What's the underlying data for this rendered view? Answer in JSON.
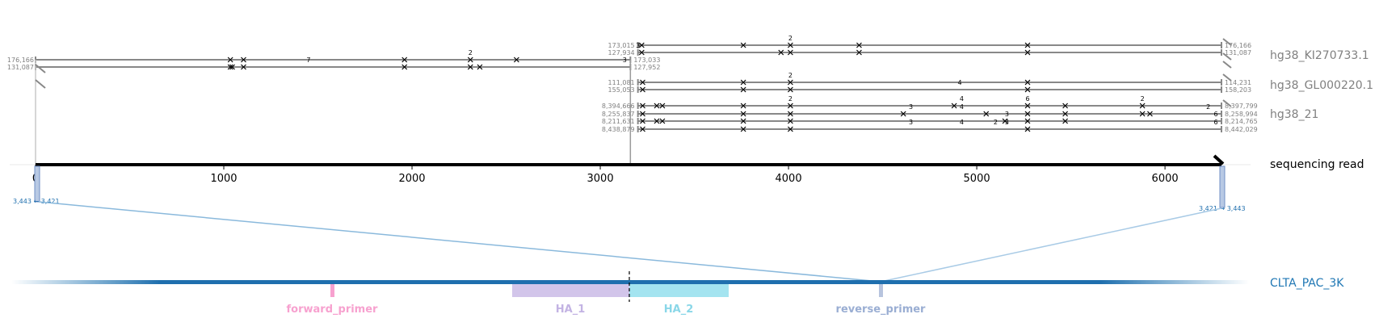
{
  "read": {
    "label": "sequencing read",
    "length": 6300,
    "ticks": [
      0,
      1000,
      2000,
      3000,
      4000,
      5000,
      6000
    ]
  },
  "colors": {
    "alignment": "#888888",
    "read": "#000000",
    "target": "#1f77b4",
    "forward_primer": "#f7a1cf",
    "HA_1": "#d2c5ea",
    "HA_2": "#a4e4f0",
    "reverse_primer": "#9aaed3",
    "connector": "#8ab9dc",
    "contig_label": "#808080"
  },
  "contigs": [
    {
      "name": "hg38_KI270733.1",
      "alignments": [
        {
          "read_start": 0,
          "read_end": 3160,
          "ref_start": "176,166",
          "ref_end": "173,033",
          "mismatches": [
            1035,
            1105,
            1960,
            2310,
            2555
          ],
          "mismatch_counts": [
            {
              "x": 2310,
              "n": "2"
            }
          ]
        },
        {
          "read_start": 0,
          "read_end": 3160,
          "ref_start": "131,087",
          "ref_end": "127,952",
          "mismatches": [
            1035,
            1045,
            1105,
            1960,
            2310,
            2360
          ],
          "mismatch_counts": [
            {
              "x": 1450,
              "n": "7"
            },
            {
              "x": 3130,
              "n": "3"
            }
          ]
        },
        {
          "read_start": 3200,
          "read_end": 6300,
          "ref_start": "173,015",
          "ref_end": "176,166",
          "mismatches": [
            3220,
            3760,
            4010,
            4375,
            5270
          ],
          "mismatch_counts": [
            {
              "x": 4010,
              "n": "2"
            }
          ]
        },
        {
          "read_start": 3200,
          "read_end": 6300,
          "ref_start": "127,934",
          "ref_end": "131,087",
          "mismatches": [
            3220,
            3960,
            4010,
            4375,
            5270
          ],
          "mismatch_counts": [
            {
              "x": 3200,
              "n": "3"
            }
          ]
        }
      ]
    },
    {
      "name": "hg38_GL000220.1",
      "alignments": [
        {
          "read_start": 3200,
          "read_end": 6300,
          "ref_start": "111,081",
          "ref_end": "114,231",
          "mismatches": [
            3225,
            3760,
            4010,
            5270
          ],
          "mismatch_counts": [
            {
              "x": 4010,
              "n": "2"
            }
          ]
        },
        {
          "read_start": 3200,
          "read_end": 6300,
          "ref_start": "155,053",
          "ref_end": "158,203",
          "mismatches": [
            3225,
            3760,
            4010,
            5270
          ],
          "mismatch_counts": [
            {
              "x": 4910,
              "n": "4"
            }
          ]
        }
      ]
    },
    {
      "name": "hg38_21",
      "alignments": [
        {
          "read_start": 3200,
          "read_end": 6300,
          "ref_start": "8,394,666",
          "ref_end": "8,397,799",
          "mismatches": [
            3225,
            3300,
            3330,
            3760,
            4010,
            4880,
            5270,
            5470,
            5880
          ],
          "mismatch_counts": [
            {
              "x": 4010,
              "n": "2"
            },
            {
              "x": 5880,
              "n": "2"
            },
            {
              "x": 4920,
              "n": "4"
            },
            {
              "x": 5270,
              "n": "6"
            }
          ]
        },
        {
          "read_start": 3200,
          "read_end": 6300,
          "ref_start": "8,255,837",
          "ref_end": "8,258,994",
          "mismatches": [
            3225,
            3760,
            4010,
            4610,
            5050,
            5270,
            5470,
            5880,
            5920
          ],
          "mismatch_counts": [
            {
              "x": 4650,
              "n": "3"
            },
            {
              "x": 4920,
              "n": "4"
            },
            {
              "x": 6230,
              "n": "2"
            }
          ]
        },
        {
          "read_start": 3200,
          "read_end": 6300,
          "ref_start": "8,211,631",
          "ref_end": "8,214,765",
          "mismatches": [
            3225,
            3300,
            3330,
            3760,
            4010,
            5150,
            5270,
            5470
          ],
          "mismatch_counts": [
            {
              "x": 5160,
              "n": "3"
            },
            {
              "x": 6270,
              "n": "6"
            }
          ]
        },
        {
          "read_start": 3200,
          "read_end": 6300,
          "ref_start": "8,438,879",
          "ref_end": "8,442,029",
          "mismatches": [
            3225,
            3760,
            4010,
            5270
          ],
          "mismatch_counts": [
            {
              "x": 4650,
              "n": "3"
            },
            {
              "x": 4920,
              "n": "4"
            },
            {
              "x": 5100,
              "n": "2"
            },
            {
              "x": 5160,
              "n": "3"
            },
            {
              "x": 6270,
              "n": "6"
            }
          ]
        }
      ]
    }
  ],
  "read_left_label": "3,443 ← 3,421",
  "read_right_label": "3,421 → 3,443",
  "target": {
    "name": "CLTA_PAC_3K",
    "features": [
      {
        "name": "forward_primer",
        "key": "forward_primer"
      },
      {
        "name": "HA_1",
        "key": "HA_1"
      },
      {
        "name": "HA_2",
        "key": "HA_2"
      },
      {
        "name": "reverse_primer",
        "key": "reverse_primer"
      }
    ]
  }
}
